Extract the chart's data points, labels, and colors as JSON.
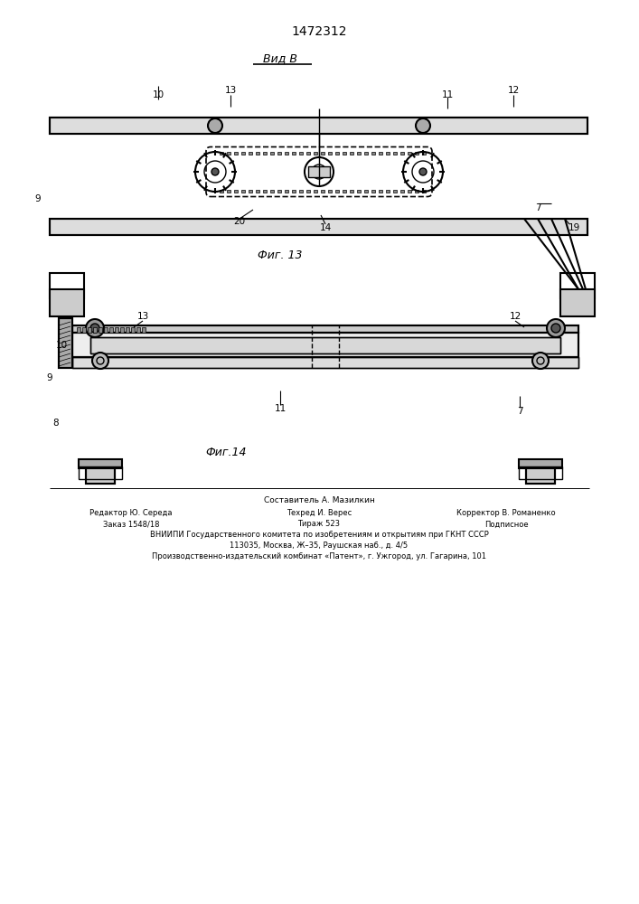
{
  "patent_number": "1472312",
  "view_label": "Вид В",
  "fig13_label": "Фиг. 13",
  "fig14_label": "Фиг.14",
  "footer_line1": "Составитель А. Мазилкин",
  "footer_line2_left": "Редактор Ю. Середа",
  "footer_line2_mid": "Техред И. Верес",
  "footer_line2_right": "Корректор В. Романенко",
  "footer_line3_left": "Заказ 1548/18",
  "footer_line3_mid": "Тираж 523",
  "footer_line3_right": "Подписное",
  "footer_line4": "ВНИИПИ Государственного комитета по изобретениям и открытиям при ГКНТ СССР",
  "footer_line5": "113035, Москва, Ж–35, Раушская наб., д. 4/5",
  "footer_line6": "Производственно-издательский комбинат «Патент», г. Ужгород, ул. Гагарина, 101",
  "bg_color": "#ffffff",
  "line_color": "#000000",
  "label_color": "#000000"
}
